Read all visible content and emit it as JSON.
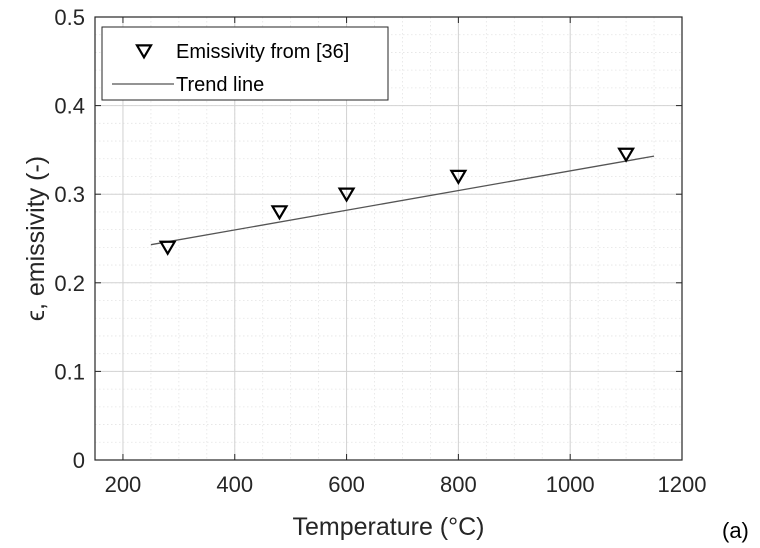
{
  "chart_data": {
    "type": "scatter",
    "xlabel": "Temperature (°C)",
    "ylabel": "ϵ, emissivity (-)",
    "xlim": [
      150,
      1200
    ],
    "ylim": [
      0,
      0.5
    ],
    "xticks": [
      200,
      400,
      600,
      800,
      1000,
      1200
    ],
    "yticks": [
      0,
      0.1,
      0.2,
      0.3,
      0.4,
      0.5
    ],
    "xtick_labels": [
      "200",
      "400",
      "600",
      "800",
      "1000",
      "1200"
    ],
    "ytick_labels": [
      "0",
      "0.1",
      "0.2",
      "0.3",
      "0.4",
      "0.5"
    ],
    "grid": "major and minor",
    "legend_position": "top-left",
    "series": [
      {
        "name": "Emissivity from [36]",
        "type": "scatter",
        "marker": "triangle-down",
        "color": "#000000",
        "x": [
          280,
          480,
          600,
          800,
          1100
        ],
        "y": [
          0.24,
          0.28,
          0.3,
          0.32,
          0.345
        ]
      },
      {
        "name": "Trend line",
        "type": "line",
        "color": "#555555",
        "x": [
          250,
          1150
        ],
        "y": [
          0.243,
          0.343
        ]
      }
    ]
  },
  "panel_label": "(a)"
}
